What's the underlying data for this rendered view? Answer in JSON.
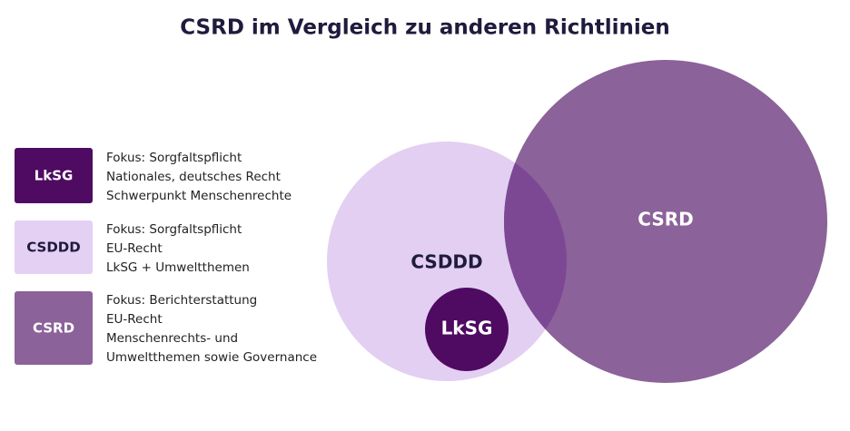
{
  "title": "CSRD im Vergleich zu anderen Richtlinien",
  "legend": [
    {
      "label": "LkSG",
      "lines": [
        "Fokus: Sorgfaltspflicht",
        "Nationales, deutsches Recht",
        "Schwerpunkt Menschenrechte"
      ]
    },
    {
      "label": "CSDDD",
      "lines": [
        "Fokus: Sorgfaltspflicht",
        "EU-Recht",
        "LkSG + Umweltthemen"
      ]
    },
    {
      "label": "CSRD",
      "lines": [
        "Fokus: Berichterstattung",
        "EU-Recht",
        "Menschenrechts- und",
        "Umweltthemen sowie Governance"
      ]
    }
  ],
  "diagram": {
    "circles": [
      {
        "label": "CSDDD"
      },
      {
        "label": "CSRD"
      },
      {
        "label": "LkSG"
      }
    ]
  }
}
